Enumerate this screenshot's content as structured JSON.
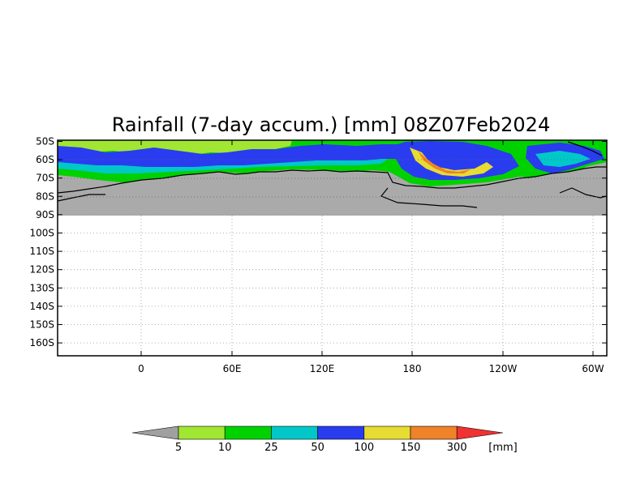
{
  "title": "Rainfall (7-day accum.) [mm] 08Z07Feb2024",
  "lat_labels": [
    "50S",
    "60S",
    "70S",
    "80S",
    "90S",
    "100S",
    "110S",
    "120S",
    "130S",
    "140S",
    "150S",
    "160S"
  ],
  "lon_labels": [
    "0",
    "60E",
    "120E",
    "180",
    "120W",
    "60W"
  ],
  "colorbar": {
    "unit": "[mm]",
    "thresholds": [
      "5",
      "10",
      "25",
      "50",
      "100",
      "150",
      "300"
    ],
    "colors": [
      "#a0a0a0",
      "#a0e632",
      "#00d200",
      "#00c8c8",
      "#2a3cf0",
      "#e6dc32",
      "#f08228",
      "#f03232"
    ]
  },
  "colors": {
    "land_antarctica": "#aaaaaa",
    "below_5": "#a0a0a0",
    "c5_10": "#a0e632",
    "c10_25": "#00d200",
    "c25_50": "#00c8c8",
    "c50_100": "#2a3cf0",
    "c100_150": "#e6dc32",
    "c150_300": "#f08228",
    "c300_plus": "#f03232"
  }
}
